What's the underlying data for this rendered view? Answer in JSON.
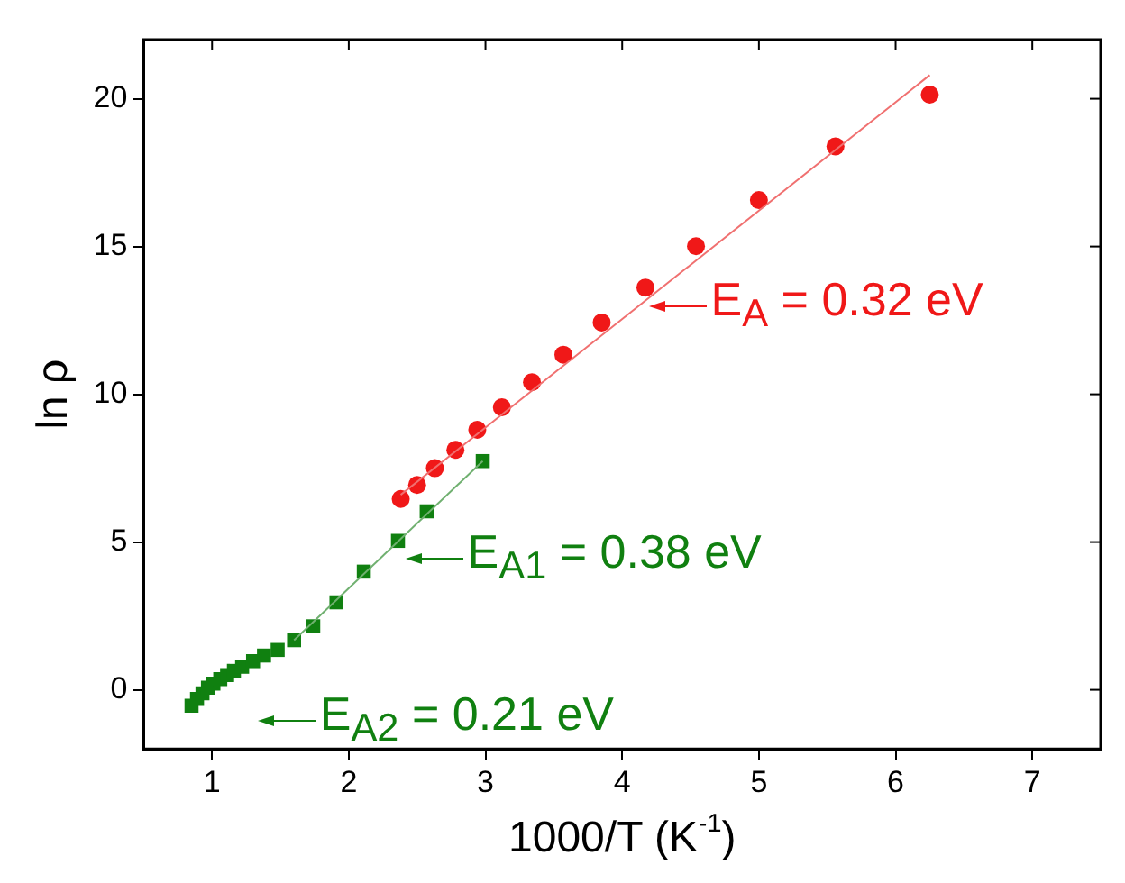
{
  "chart_data": {
    "type": "scatter",
    "xlabel": "1000/T (K$^{-1}$)",
    "ylabel": "ln ρ",
    "xlim": [
      0.5,
      7.5
    ],
    "ylim": [
      -2,
      22
    ],
    "xticks": [
      1,
      2,
      3,
      4,
      5,
      6,
      7
    ],
    "yticks": [
      0,
      5,
      10,
      15,
      20
    ],
    "grid": false,
    "legend": false,
    "series": [
      {
        "marker": "square",
        "color": "#108010",
        "x": [
          0.85,
          0.89,
          0.93,
          0.97,
          1.01,
          1.06,
          1.11,
          1.16,
          1.22,
          1.3,
          1.38,
          1.48,
          1.6,
          1.74,
          1.91,
          2.11,
          2.36,
          2.57,
          2.98
        ],
        "values": [
          -0.54,
          -0.31,
          -0.12,
          0.07,
          0.21,
          0.36,
          0.5,
          0.64,
          0.78,
          0.97,
          1.16,
          1.35,
          1.68,
          2.15,
          2.96,
          4.0,
          5.04,
          6.04,
          7.74
        ]
      },
      {
        "marker": "circle",
        "color": "#f01818",
        "x": [
          2.38,
          2.5,
          2.63,
          2.78,
          2.94,
          3.12,
          3.34,
          3.57,
          3.85,
          4.17,
          4.54,
          5.0,
          5.56,
          6.25
        ],
        "values": [
          6.46,
          6.93,
          7.5,
          8.12,
          8.8,
          9.56,
          10.41,
          11.34,
          12.43,
          13.61,
          15.01,
          16.57,
          18.39,
          20.14
        ]
      },
      {
        "type": "line",
        "marker": "none",
        "color": "#f07070",
        "x": [
          2.38,
          6.25
        ],
        "values": [
          6.6,
          20.8
        ]
      },
      {
        "type": "line",
        "marker": "none",
        "color": "#70b070",
        "x": [
          1.6,
          2.98
        ],
        "values": [
          1.68,
          7.74
        ]
      }
    ],
    "annotations": [
      {
        "text": "E$_{A}$ = 0.32 eV",
        "x": 4.2,
        "y": 13.2
      },
      {
        "text": "E$_{A1}$ = 0.38 eV",
        "x": 2.42,
        "y": 4.7
      },
      "E$_{A2}$ = 0.21 eV"
    ]
  }
}
